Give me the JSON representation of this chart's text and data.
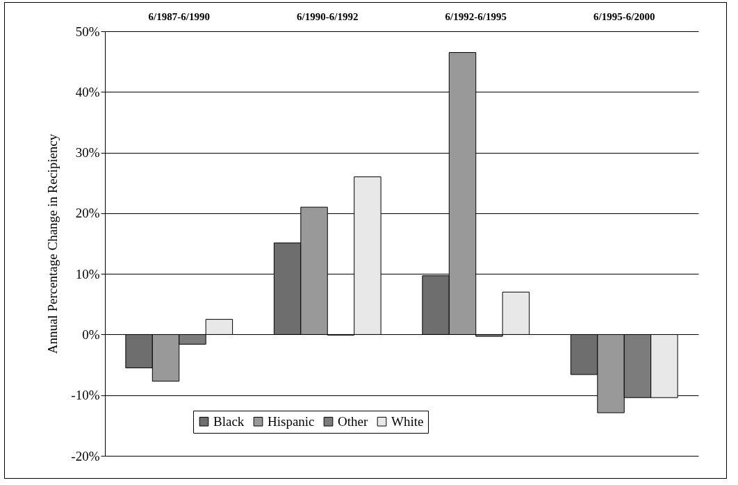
{
  "chart_data": {
    "type": "bar",
    "ylabel": "Annual Percentage Change in Recipiency",
    "categories": [
      "6/1987-6/1990",
      "6/1990-6/1992",
      "6/1992-6/1995",
      "6/1995-6/2000"
    ],
    "series": [
      {
        "name": "Black",
        "color": "#6e6e6e",
        "values": [
          -5.5,
          15.1,
          9.7,
          -6.6
        ]
      },
      {
        "name": "Hispanic",
        "color": "#999999",
        "values": [
          -7.7,
          21.0,
          46.5,
          -12.9
        ]
      },
      {
        "name": "Other",
        "color": "#7c7c7c",
        "values": [
          -1.6,
          -0.1,
          -0.3,
          -10.4
        ]
      },
      {
        "name": "White",
        "color": "#e8e8e8",
        "values": [
          2.5,
          26.0,
          7.0,
          -10.4
        ]
      }
    ],
    "ylim": [
      -20,
      50
    ],
    "yticks": [
      {
        "value": -20,
        "label": "-20%"
      },
      {
        "value": -10,
        "label": "-10%"
      },
      {
        "value": 0,
        "label": "0%"
      },
      {
        "value": 10,
        "label": "10%"
      },
      {
        "value": 20,
        "label": "20%"
      },
      {
        "value": 30,
        "label": "30%"
      },
      {
        "value": 40,
        "label": "40%"
      },
      {
        "value": 50,
        "label": "50%"
      }
    ],
    "grid": "y",
    "legend": "bottom"
  }
}
